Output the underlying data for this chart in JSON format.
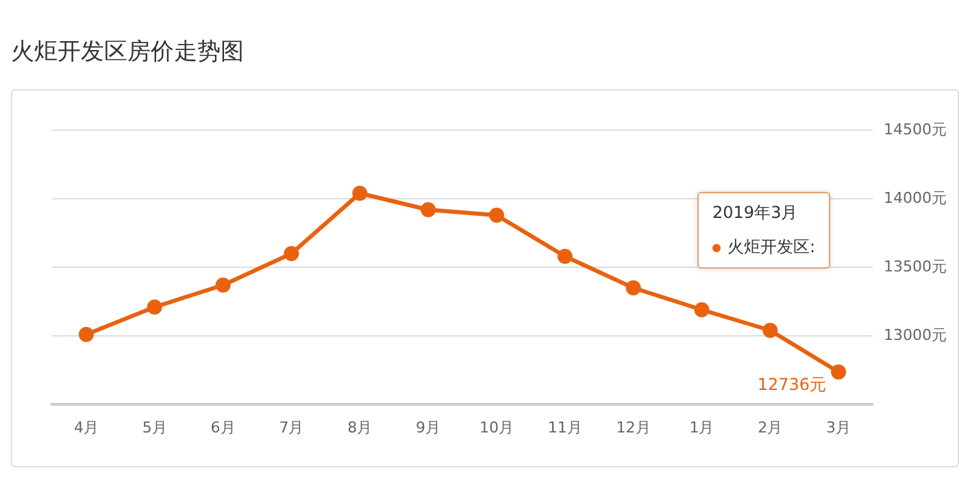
{
  "chart_data": {
    "type": "line",
    "title": "火炬开发区房价走势图",
    "categories": [
      "4月",
      "5月",
      "6月",
      "7月",
      "8月",
      "9月",
      "10月",
      "11月",
      "12月",
      "1月",
      "2月",
      "3月"
    ],
    "series": [
      {
        "name": "火炬开发区:",
        "color": "#e8620f",
        "values": [
          13010,
          13210,
          13370,
          13600,
          14040,
          13920,
          13880,
          13580,
          13350,
          13190,
          13040,
          12736
        ],
        "value_labels": [
          null,
          null,
          null,
          null,
          null,
          null,
          null,
          null,
          null,
          null,
          null,
          "12736元"
        ]
      }
    ],
    "ylim": [
      12500,
      14500
    ],
    "yticks": [
      {
        "value": 12500,
        "label": null
      },
      {
        "value": 13000,
        "label": "13000元"
      },
      {
        "value": 13500,
        "label": "13500元"
      },
      {
        "value": 14000,
        "label": "14000元"
      },
      {
        "value": 14500,
        "label": "14500元"
      }
    ],
    "annotations": [
      "2019年3月"
    ],
    "grid": "y",
    "legend": "top right",
    "marker": "circle",
    "line_style": "solid"
  }
}
